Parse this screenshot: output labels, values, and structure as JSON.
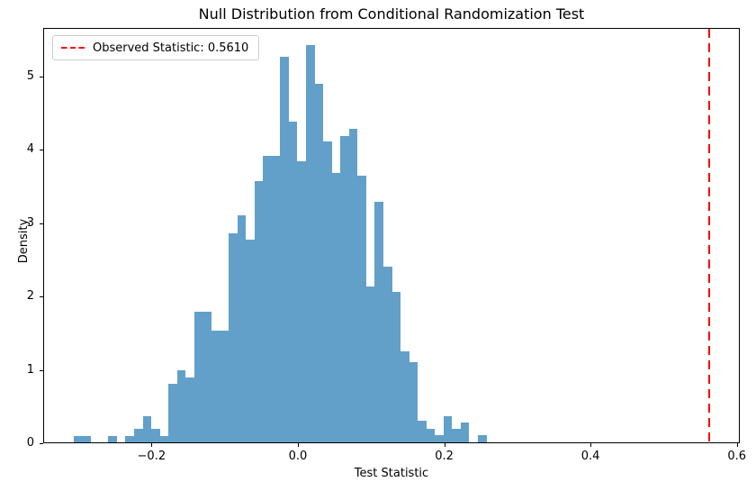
{
  "title": "Null Distribution from Conditional Randomization Test",
  "axes": {
    "xlabel": "Test Statistic",
    "ylabel": "Density",
    "xticks": [
      {
        "v": -0.2,
        "label": "−0.2"
      },
      {
        "v": 0.0,
        "label": "0.0"
      },
      {
        "v": 0.2,
        "label": "0.2"
      },
      {
        "v": 0.4,
        "label": "0.4"
      },
      {
        "v": 0.6,
        "label": "0.6"
      }
    ],
    "yticks": [
      {
        "v": 0,
        "label": "0"
      },
      {
        "v": 1,
        "label": "1"
      },
      {
        "v": 2,
        "label": "2"
      },
      {
        "v": 3,
        "label": "3"
      },
      {
        "v": 4,
        "label": "4"
      },
      {
        "v": 5,
        "label": "5"
      }
    ]
  },
  "legend": {
    "label": "Observed Statistic: 0.5610",
    "line_color": "#ff0000",
    "line_style": "dashed",
    "position": "upper left"
  },
  "chart_data": {
    "type": "bar",
    "subtype": "histogram-density",
    "title": "Null Distribution from Conditional Randomization Test",
    "xlabel": "Test Statistic",
    "ylabel": "Density",
    "xlim": [
      -0.348,
      0.604
    ],
    "ylim": [
      0,
      5.66
    ],
    "grid": false,
    "bar_color": "#1f77b4",
    "bar_alpha": 0.7,
    "bin_start": -0.3072,
    "bin_width": 0.011746,
    "densities": [
      0.09,
      0.09,
      0,
      0,
      0.09,
      0,
      0.09,
      0.19,
      0.36,
      0.19,
      0.09,
      0.8,
      0.98,
      0.89,
      1.78,
      1.78,
      1.52,
      1.52,
      2.85,
      3.1,
      2.76,
      3.56,
      3.91,
      3.91,
      5.25,
      4.37,
      3.83,
      5.41,
      4.89,
      4.1,
      3.67,
      4.17,
      4.27,
      3.64,
      2.13,
      3.28,
      2.4,
      2.05,
      1.24,
      1.09,
      0.29,
      0.18,
      0.1,
      0.36,
      0.18,
      0.27,
      0,
      0.1
    ],
    "observed_statistic": 0.561,
    "observed_line": {
      "x": 0.561,
      "color": "#ff0000",
      "style": "dashed"
    },
    "legend_entries": [
      "Observed Statistic: 0.5610"
    ]
  }
}
